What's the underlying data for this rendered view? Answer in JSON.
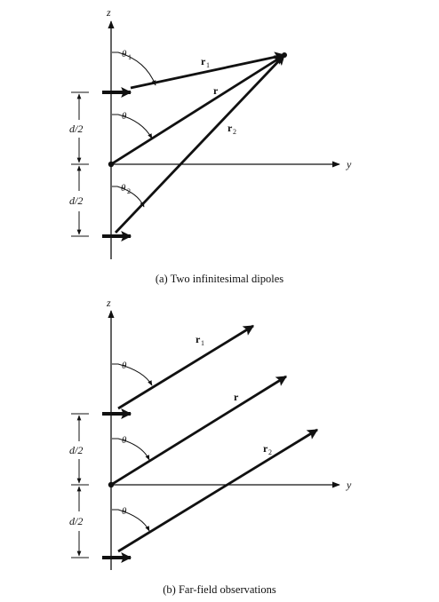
{
  "figure_a": {
    "caption": "(a)  Two infinitesimal dipoles",
    "axis_z": "z",
    "axis_y": "y",
    "theta1_sym": "θ",
    "theta1_sub": "1",
    "theta_sym": "θ",
    "theta2_sym": "θ",
    "theta2_sub": "2",
    "r1_sym": "r",
    "r1_sub": "1",
    "r_sym": "r",
    "r2_sym": "r",
    "r2_sub": "2",
    "dim_upper": "d/2",
    "dim_lower": "d/2"
  },
  "figure_b": {
    "caption": "(b)  Far-field observations",
    "axis_z": "z",
    "axis_y": "y",
    "theta_top": "θ",
    "theta_mid": "θ",
    "theta_bot": "θ",
    "r1_sym": "r",
    "r1_sub": "1",
    "r_sym": "r",
    "r2_sym": "r",
    "r2_sub": "2",
    "dim_upper": "d/2",
    "dim_lower": "d/2"
  }
}
